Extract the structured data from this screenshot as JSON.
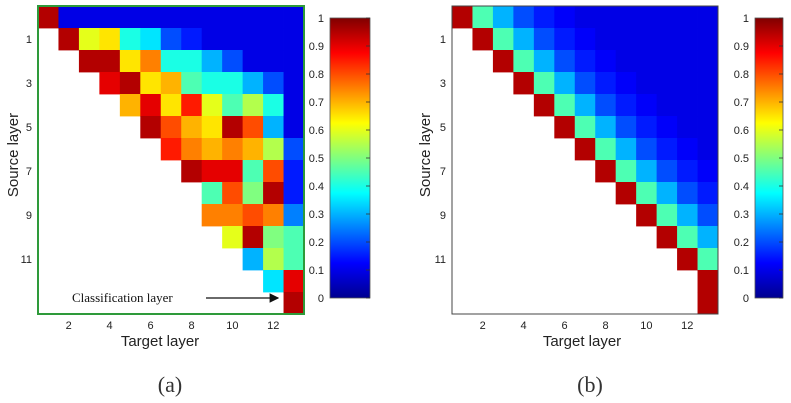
{
  "chart_data": [
    {
      "type": "heatmap",
      "subplot_label": "(a)",
      "xlabel": "Target layer",
      "ylabel": "Source layer",
      "x_ticks": [
        "2",
        "4",
        "6",
        "8",
        "10",
        "12"
      ],
      "y_ticks": [
        "1",
        "3",
        "5",
        "7",
        "9",
        "11"
      ],
      "annotation": "Classification layer",
      "colorbar_ticks": [
        "0",
        "0.1",
        "0.2",
        "0.3",
        "0.4",
        "0.5",
        "0.6",
        "0.7",
        "0.8",
        "0.9",
        "1"
      ],
      "clim": [
        0,
        1
      ],
      "matrix": [
        [
          0.95,
          0.1,
          0.1,
          0.1,
          0.1,
          0.1,
          0.1,
          0.1,
          0.1,
          0.1,
          0.1,
          0.1,
          0.1
        ],
        [
          null,
          0.95,
          0.6,
          0.65,
          0.4,
          0.35,
          0.2,
          0.15,
          0.1,
          0.1,
          0.1,
          0.1,
          0.1
        ],
        [
          null,
          null,
          0.95,
          0.95,
          0.65,
          0.75,
          0.4,
          0.4,
          0.3,
          0.2,
          0.1,
          0.1,
          0.1
        ],
        [
          null,
          null,
          null,
          0.9,
          0.95,
          0.65,
          0.7,
          0.45,
          0.4,
          0.4,
          0.3,
          0.2,
          0.1
        ],
        [
          null,
          null,
          null,
          null,
          0.7,
          0.9,
          0.65,
          0.85,
          0.6,
          0.45,
          0.55,
          0.4,
          0.1
        ],
        [
          null,
          null,
          null,
          null,
          null,
          0.95,
          0.8,
          0.7,
          0.65,
          0.95,
          0.8,
          0.3,
          0.1
        ],
        [
          null,
          null,
          null,
          null,
          null,
          null,
          0.85,
          0.75,
          0.7,
          0.75,
          0.7,
          0.55,
          0.2
        ],
        [
          null,
          null,
          null,
          null,
          null,
          null,
          null,
          0.95,
          0.9,
          0.9,
          0.45,
          0.8,
          0.15
        ],
        [
          null,
          null,
          null,
          null,
          null,
          null,
          null,
          null,
          0.45,
          0.8,
          0.5,
          0.95,
          0.15
        ],
        [
          null,
          null,
          null,
          null,
          null,
          null,
          null,
          null,
          0.75,
          0.75,
          0.8,
          0.75,
          0.25
        ],
        [
          null,
          null,
          null,
          null,
          null,
          null,
          null,
          null,
          null,
          0.6,
          0.95,
          0.5,
          0.45
        ],
        [
          null,
          null,
          null,
          null,
          null,
          null,
          null,
          null,
          null,
          null,
          0.3,
          0.55,
          0.45
        ],
        [
          null,
          null,
          null,
          null,
          null,
          null,
          null,
          null,
          null,
          null,
          null,
          0.35,
          0.9
        ],
        [
          null,
          null,
          null,
          null,
          null,
          null,
          null,
          null,
          null,
          null,
          null,
          null,
          0.95
        ]
      ]
    },
    {
      "type": "heatmap",
      "subplot_label": "(b)",
      "xlabel": "Target layer",
      "ylabel": "Source layer",
      "x_ticks": [
        "2",
        "4",
        "6",
        "8",
        "10",
        "12"
      ],
      "y_ticks": [
        "1",
        "3",
        "5",
        "7",
        "9",
        "11"
      ],
      "colorbar_ticks": [
        "0",
        "0.1",
        "0.2",
        "0.3",
        "0.4",
        "0.5",
        "0.6",
        "0.7",
        "0.8",
        "0.9",
        "1"
      ],
      "clim": [
        0,
        1
      ],
      "matrix": [
        [
          0.95,
          0.45,
          0.3,
          0.2,
          0.15,
          0.12,
          0.1,
          0.1,
          0.1,
          0.1,
          0.1,
          0.1,
          0.1
        ],
        [
          null,
          0.95,
          0.45,
          0.3,
          0.2,
          0.15,
          0.12,
          0.1,
          0.1,
          0.1,
          0.1,
          0.1,
          0.1
        ],
        [
          null,
          null,
          0.95,
          0.45,
          0.3,
          0.2,
          0.15,
          0.12,
          0.1,
          0.1,
          0.1,
          0.1,
          0.1
        ],
        [
          null,
          null,
          null,
          0.95,
          0.45,
          0.3,
          0.2,
          0.15,
          0.12,
          0.1,
          0.1,
          0.1,
          0.1
        ],
        [
          null,
          null,
          null,
          null,
          0.95,
          0.45,
          0.3,
          0.2,
          0.15,
          0.12,
          0.1,
          0.1,
          0.1
        ],
        [
          null,
          null,
          null,
          null,
          null,
          0.95,
          0.45,
          0.3,
          0.2,
          0.15,
          0.12,
          0.1,
          0.1
        ],
        [
          null,
          null,
          null,
          null,
          null,
          null,
          0.95,
          0.45,
          0.3,
          0.2,
          0.15,
          0.12,
          0.1
        ],
        [
          null,
          null,
          null,
          null,
          null,
          null,
          null,
          0.95,
          0.45,
          0.3,
          0.2,
          0.15,
          0.12
        ],
        [
          null,
          null,
          null,
          null,
          null,
          null,
          null,
          null,
          0.95,
          0.45,
          0.3,
          0.2,
          0.15
        ],
        [
          null,
          null,
          null,
          null,
          null,
          null,
          null,
          null,
          null,
          0.95,
          0.45,
          0.3,
          0.2
        ],
        [
          null,
          null,
          null,
          null,
          null,
          null,
          null,
          null,
          null,
          null,
          0.95,
          0.45,
          0.3
        ],
        [
          null,
          null,
          null,
          null,
          null,
          null,
          null,
          null,
          null,
          null,
          null,
          0.95,
          0.45
        ],
        [
          null,
          null,
          null,
          null,
          null,
          null,
          null,
          null,
          null,
          null,
          null,
          null,
          0.95
        ],
        [
          null,
          null,
          null,
          null,
          null,
          null,
          null,
          null,
          null,
          null,
          null,
          null,
          0.95
        ]
      ]
    }
  ],
  "colors": {
    "frame_a": "#2e9a3a"
  }
}
